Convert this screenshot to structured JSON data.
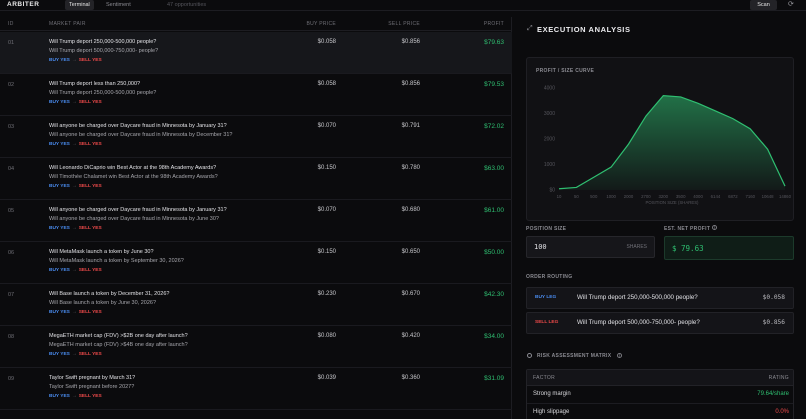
{
  "header": {
    "brand": "ARBITER",
    "tabs": [
      {
        "label": "Terminal"
      },
      {
        "label": "Sentiment"
      }
    ],
    "opportunities": "47 opportunities",
    "scan_label": "Scan",
    "refresh_icon": "refresh-icon"
  },
  "table": {
    "columns": {
      "id": "ID",
      "pair": "MARKET PAIR",
      "buy": "BUY PRICE",
      "sell": "SELL PRICE",
      "profit": "PROFIT"
    },
    "buy_label": "BUY YES",
    "sell_label": "SELL YES",
    "arrow": "→",
    "rows": [
      {
        "id": "01",
        "q1": "Will Trump deport 250,000-500,000 people?",
        "q2": "Will Trump deport 500,000-750,000- people?",
        "buy": "$0.058",
        "sell": "$0.856",
        "profit": "$79.63"
      },
      {
        "id": "02",
        "q1": "Will Trump deport less than 250,000?",
        "q2": "Will Trump deport 250,000-500,000 people?",
        "buy": "$0.058",
        "sell": "$0.856",
        "profit": "$79.53"
      },
      {
        "id": "03",
        "q1": "Will anyone be charged over Daycare fraud in Minnesota by January 31?",
        "q2": "Will anyone be charged over Daycare fraud in Minnesota by December 31?",
        "buy": "$0.070",
        "sell": "$0.791",
        "profit": "$72.02"
      },
      {
        "id": "04",
        "q1": "Will Leonardo DiCaprio win Best Actor at the 98th Academy Awards?",
        "q2": "Will Timothée Chalamet win Best Actor at the 98th Academy Awards?",
        "buy": "$0.150",
        "sell": "$0.780",
        "profit": "$63.00"
      },
      {
        "id": "05",
        "q1": "Will anyone be charged over Daycare fraud in Minnesota by January 31?",
        "q2": "Will anyone be charged over Daycare fraud in Minnesota by June 30?",
        "buy": "$0.070",
        "sell": "$0.680",
        "profit": "$61.00"
      },
      {
        "id": "06",
        "q1": "Will MetaMask launch a token by June 30?",
        "q2": "Will MetaMask launch a token by September 30, 2026?",
        "buy": "$0.150",
        "sell": "$0.650",
        "profit": "$50.00"
      },
      {
        "id": "07",
        "q1": "Will Base launch a token by December 31, 2026?",
        "q2": "Will Base launch a token by June 30, 2026?",
        "buy": "$0.230",
        "sell": "$0.670",
        "profit": "$42.30"
      },
      {
        "id": "08",
        "q1": "MegaETH market cap (FDV) >$2B one day after launch?",
        "q2": "MegaETH market cap (FDV) >$4B one day after launch?",
        "buy": "$0.080",
        "sell": "$0.420",
        "profit": "$34.00"
      },
      {
        "id": "09",
        "q1": "Taylor Swift pregnant by March 31?",
        "q2": "Taylor Swift pregnant before 2027?",
        "buy": "$0.039",
        "sell": "$0.360",
        "profit": "$31.09"
      }
    ]
  },
  "panel": {
    "title": "EXECUTION ANALYSIS",
    "expand_icon": "expand-icon",
    "position_label": "POSITION SIZE",
    "position_value": "100",
    "position_unit": "SHARES",
    "net_profit_label": "EST. NET PROFIT",
    "net_profit_value": "$ 79.63",
    "routing_label": "ORDER ROUTING",
    "routes": [
      {
        "tag": "BUY LEG",
        "question": "Will Trump deport 250,000-500,000 people?",
        "price": "$0.058"
      },
      {
        "tag": "SELL LEG",
        "question": "Will Trump deport 500,000-750,000- people?",
        "price": "$0.856"
      }
    ],
    "risk_title": "RISK ASSESSMENT MATRIX",
    "risk_cols": {
      "factor": "FACTOR",
      "rating": "RATING"
    },
    "risk_rows": [
      {
        "factor": "Strong margin",
        "rating": "79.64/share",
        "color": "#2fbf71"
      },
      {
        "factor": "High slippage",
        "rating": "0.0%",
        "color": "#ef4a4a"
      }
    ]
  },
  "chart_data": {
    "type": "area",
    "title": "PROFIT / SIZE CURVE",
    "xlabel": "POSITION SIZE (SHARES)",
    "ylabel": "",
    "x_ticks": [
      "10",
      "50",
      "500",
      "1000",
      "2000",
      "2700",
      "3200",
      "3500",
      "4000",
      "6144",
      "6872",
      "7160",
      "10648",
      "14860"
    ],
    "y_ticks": [
      "$0",
      "1000",
      "2000",
      "3000",
      "4000"
    ],
    "ylim": [
      0,
      4000
    ],
    "series": [
      {
        "values": [
          50,
          100,
          500,
          900,
          1800,
          2900,
          3700,
          3650,
          3400,
          3100,
          2800,
          2400,
          1600,
          150
        ]
      }
    ],
    "color": "#2fbf71"
  }
}
